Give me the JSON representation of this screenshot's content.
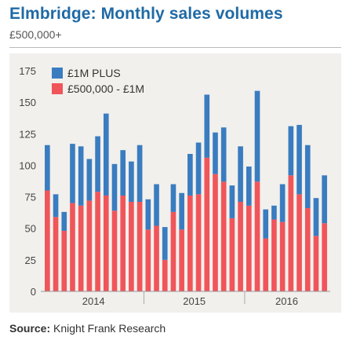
{
  "header": {
    "title": "Elmbridge: Monthly sales volumes",
    "subtitle": "£500,000+"
  },
  "footer": {
    "source_label": "Source:",
    "source_text": "Knight Frank Research"
  },
  "colors": {
    "upper_series": "#3a7cc0",
    "lower_series": "#f0555a",
    "title": "#1f6aa5",
    "panel_bg": "#f1f0ec"
  },
  "chart_data": {
    "type": "bar",
    "stacked": true,
    "title": "Elmbridge: Monthly sales volumes",
    "subtitle": "£500,000+",
    "xlabel": "",
    "ylabel": "",
    "ylim": [
      0,
      175
    ],
    "yticks": [
      0,
      25,
      50,
      75,
      100,
      125,
      150,
      175
    ],
    "year_labels": [
      "2014",
      "2015",
      "2016"
    ],
    "year_start_index": [
      0,
      12,
      24
    ],
    "legend_position": "top-left",
    "grid": false,
    "series": [
      {
        "name": "£500,000 - £1M",
        "color": "#f0555a",
        "values": [
          80,
          59,
          48,
          70,
          68,
          72,
          79,
          76,
          64,
          76,
          71,
          71,
          49,
          52,
          25,
          63,
          49,
          76,
          77,
          106,
          93,
          87,
          58,
          71,
          68,
          87,
          42,
          57,
          55,
          92,
          77,
          66,
          44,
          54
        ]
      },
      {
        "name": "£1M PLUS",
        "color": "#3a7cc0",
        "values": [
          36,
          18,
          15,
          47,
          47,
          33,
          44,
          65,
          37,
          36,
          32,
          45,
          24,
          33,
          26,
          22,
          29,
          33,
          41,
          50,
          33,
          43,
          26,
          44,
          31,
          72,
          23,
          11,
          30,
          39,
          55,
          50,
          30,
          38
        ]
      }
    ]
  }
}
